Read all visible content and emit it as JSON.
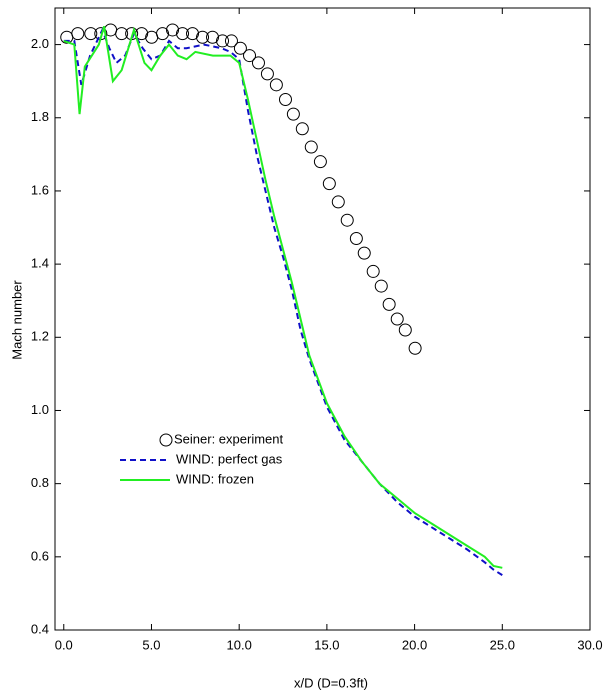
{
  "chart_data": {
    "type": "line",
    "xlabel": "x/D (D=0.3ft)",
    "ylabel": "Mach number",
    "xlim": [
      -0.5,
      30
    ],
    "ylim": [
      0.4,
      2.1
    ],
    "xticks": [
      {
        "value": 0,
        "label": "0.0"
      },
      {
        "value": 5,
        "label": "5.0"
      },
      {
        "value": 10,
        "label": "10.0"
      },
      {
        "value": 15,
        "label": "15.0"
      },
      {
        "value": 20,
        "label": "20.0"
      },
      {
        "value": 25,
        "label": "25.0"
      },
      {
        "value": 30,
        "label": "30.0"
      }
    ],
    "yticks": [
      0.4,
      0.6,
      0.8,
      {
        "value": 1,
        "label": "1.0"
      },
      1.2,
      1.4,
      1.6,
      1.8,
      {
        "value": 2,
        "label": "2.0"
      }
    ],
    "legend": "lower-left",
    "series": [
      {
        "name": "Seiner: experiment",
        "color": "#000000",
        "marker": "circle",
        "x": [
          0.17,
          0.8,
          1.54,
          2.11,
          2.67,
          3.3,
          3.87,
          4.44,
          5.01,
          5.63,
          6.2,
          6.77,
          7.34,
          7.91,
          8.48,
          9.05,
          9.56,
          10.07,
          10.59,
          11.1,
          11.61,
          12.12,
          12.64,
          13.09,
          13.6,
          14.11,
          14.63,
          15.14,
          15.65,
          16.16,
          16.68,
          17.13,
          17.64,
          18.1,
          18.55,
          19.01,
          19.47,
          20.03
        ],
        "values": [
          2.02,
          2.03,
          2.03,
          2.03,
          2.04,
          2.03,
          2.03,
          2.03,
          2.02,
          2.03,
          2.04,
          2.03,
          2.03,
          2.02,
          2.02,
          2.01,
          2.01,
          1.99,
          1.97,
          1.95,
          1.92,
          1.89,
          1.85,
          1.81,
          1.77,
          1.72,
          1.68,
          1.62,
          1.57,
          1.52,
          1.47,
          1.43,
          1.38,
          1.34,
          1.29,
          1.25,
          1.22,
          1.17
        ]
      },
      {
        "name": "WIND: perfect gas",
        "color": "#1010c8",
        "dash": true,
        "x": [
          0,
          0.6,
          1.0,
          1.5,
          2.2,
          2.6,
          3.0,
          3.5,
          4.0,
          4.5,
          5.0,
          5.5,
          6.0,
          6.5,
          7.0,
          8.0,
          9.0,
          9.5,
          10.0,
          10.5,
          11.0,
          11.5,
          12.0,
          12.5,
          13.0,
          13.5,
          14.0,
          15.0,
          16.0,
          17.0,
          18.0,
          19.0,
          20.0,
          21.0,
          22.0,
          23.0,
          24.0,
          24.5,
          25.0
        ],
        "values": [
          2.01,
          2.01,
          1.89,
          1.97,
          2.04,
          1.99,
          1.95,
          1.97,
          2.03,
          1.99,
          1.96,
          1.97,
          2.01,
          1.99,
          1.99,
          2.0,
          1.99,
          1.98,
          1.96,
          1.82,
          1.7,
          1.6,
          1.5,
          1.42,
          1.33,
          1.22,
          1.14,
          1.01,
          0.92,
          0.86,
          0.8,
          0.75,
          0.71,
          0.68,
          0.65,
          0.62,
          0.585,
          0.565,
          0.55
        ]
      },
      {
        "name": "WIND: frozen",
        "color": "#22ee22",
        "x": [
          0,
          0.6,
          0.9,
          1.2,
          2.0,
          2.3,
          2.8,
          3.3,
          4.0,
          4.6,
          5.0,
          5.5,
          6.0,
          6.5,
          7.0,
          7.5,
          8.5,
          9.5,
          10.0,
          10.5,
          11.0,
          11.5,
          12.0,
          12.5,
          13.0,
          13.5,
          14.0,
          15.0,
          16.0,
          17.0,
          18.0,
          19.0,
          20.0,
          21.0,
          22.0,
          23.0,
          24.0,
          24.5,
          25.0
        ],
        "values": [
          2.01,
          2.0,
          1.81,
          1.94,
          2.0,
          2.05,
          1.9,
          1.93,
          2.04,
          1.95,
          1.93,
          1.97,
          2.0,
          1.97,
          1.96,
          1.98,
          1.97,
          1.97,
          1.95,
          1.85,
          1.74,
          1.63,
          1.53,
          1.44,
          1.35,
          1.25,
          1.15,
          1.02,
          0.93,
          0.86,
          0.8,
          0.76,
          0.72,
          0.69,
          0.66,
          0.63,
          0.6,
          0.575,
          0.57
        ]
      }
    ]
  }
}
